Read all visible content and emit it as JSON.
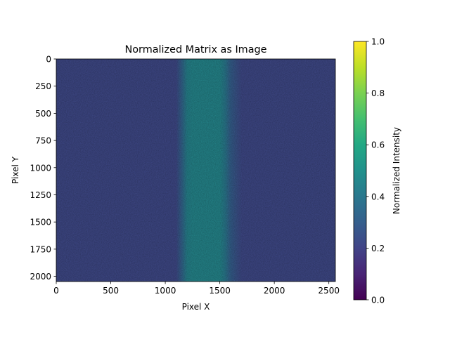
{
  "chart_data": {
    "type": "heatmap",
    "title": "Normalized Matrix as Image",
    "xlabel": "Pixel X",
    "ylabel": "Pixel Y",
    "xlim": [
      0,
      2560
    ],
    "ylim": [
      2048,
      0
    ],
    "x_ticks": [
      0,
      500,
      1000,
      1500,
      2000,
      2500
    ],
    "y_ticks": [
      0,
      250,
      500,
      750,
      1000,
      1250,
      1500,
      1750,
      2000
    ],
    "colorbar": {
      "label": "Normalized Intensity",
      "colormap": "viridis",
      "range": [
        0.0,
        1.0
      ],
      "ticks": [
        "0.0",
        "0.2",
        "0.4",
        "0.6",
        "0.8",
        "1.0"
      ]
    },
    "intensity_profile_x": {
      "x": [
        0,
        1100,
        1150,
        1200,
        1250,
        1500,
        1550,
        1600,
        1700,
        2560
      ],
      "values": [
        0.22,
        0.22,
        0.32,
        0.44,
        0.46,
        0.46,
        0.4,
        0.3,
        0.22,
        0.22
      ]
    },
    "colors": {
      "background_low": "#3b518b",
      "band_center": "#2a8c8d"
    }
  }
}
